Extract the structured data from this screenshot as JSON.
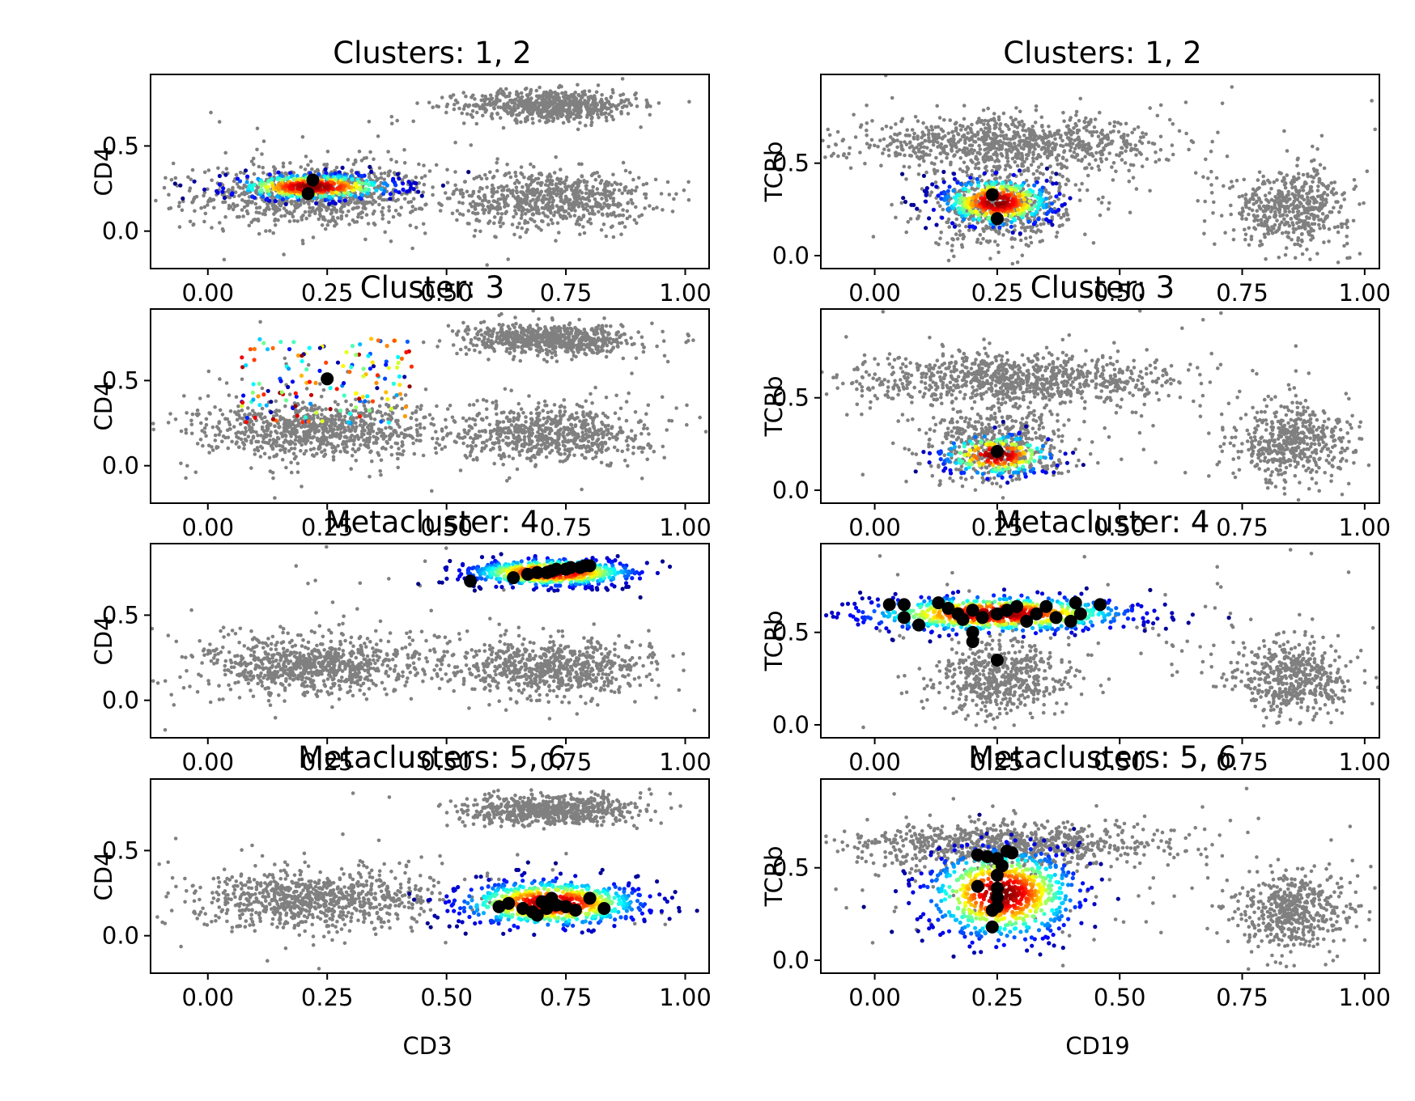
{
  "chart_data": [
    {
      "type": "scatter",
      "title": "Clusters: 1, 2",
      "xlabel": "",
      "ylabel": "CD4",
      "xlim": [
        -0.12,
        1.05
      ],
      "ylim": [
        -0.22,
        0.92
      ],
      "xticks": [
        "0.00",
        "0.25",
        "0.50",
        "0.75",
        "1.00"
      ],
      "yticks": [
        "0.0",
        "0.5"
      ],
      "background_blobs": [
        {
          "cx": 0.22,
          "cy": 0.21,
          "sx": 0.12,
          "sy": 0.09,
          "n": 800
        },
        {
          "cx": 0.72,
          "cy": 0.74,
          "sx": 0.09,
          "sy": 0.045,
          "n": 700
        },
        {
          "cx": 0.72,
          "cy": 0.19,
          "sx": 0.1,
          "sy": 0.085,
          "n": 700
        },
        {
          "cx": 0.3,
          "cy": 0.3,
          "sx": 0.3,
          "sy": 0.25,
          "n": 90
        }
      ],
      "highlight": {
        "cx": 0.22,
        "cy": 0.26,
        "sx": 0.09,
        "sy": 0.04,
        "n": 420,
        "style": "gaussian"
      },
      "centroids": [
        [
          0.22,
          0.3
        ],
        [
          0.21,
          0.22
        ]
      ]
    },
    {
      "type": "scatter",
      "title": "Clusters: 1, 2",
      "xlabel": "",
      "ylabel": "TCRb",
      "xlim": [
        -0.11,
        1.03
      ],
      "ylim": [
        -0.07,
        0.98
      ],
      "xticks": [
        "0.00",
        "0.25",
        "0.50",
        "0.75",
        "1.00"
      ],
      "yticks": [
        "0.0",
        "0.5"
      ],
      "background_blobs": [
        {
          "cx": 0.27,
          "cy": 0.6,
          "sx": 0.16,
          "sy": 0.07,
          "n": 900
        },
        {
          "cx": 0.25,
          "cy": 0.25,
          "sx": 0.07,
          "sy": 0.1,
          "n": 500
        },
        {
          "cx": 0.85,
          "cy": 0.26,
          "sx": 0.06,
          "sy": 0.1,
          "n": 500
        },
        {
          "cx": 0.5,
          "cy": 0.5,
          "sx": 0.3,
          "sy": 0.25,
          "n": 90
        }
      ],
      "highlight": {
        "cx": 0.25,
        "cy": 0.29,
        "sx": 0.06,
        "sy": 0.07,
        "n": 420,
        "style": "gaussian"
      },
      "centroids": [
        [
          0.24,
          0.33
        ],
        [
          0.25,
          0.2
        ]
      ]
    },
    {
      "type": "scatter",
      "title": "Cluster: 3",
      "xlabel": "",
      "ylabel": "CD4",
      "xlim": [
        -0.12,
        1.05
      ],
      "ylim": [
        -0.22,
        0.92
      ],
      "xticks": [
        "0.00",
        "0.25",
        "0.50",
        "0.75",
        "1.00"
      ],
      "yticks": [
        "0.0",
        "0.5"
      ],
      "background_blobs": [
        {
          "cx": 0.22,
          "cy": 0.21,
          "sx": 0.12,
          "sy": 0.08,
          "n": 800
        },
        {
          "cx": 0.72,
          "cy": 0.74,
          "sx": 0.09,
          "sy": 0.045,
          "n": 700
        },
        {
          "cx": 0.72,
          "cy": 0.19,
          "sx": 0.1,
          "sy": 0.085,
          "n": 700
        },
        {
          "cx": 0.3,
          "cy": 0.3,
          "sx": 0.3,
          "sy": 0.25,
          "n": 90
        }
      ],
      "highlight": {
        "cx": 0.25,
        "cy": 0.5,
        "sx": 0.1,
        "sy": 0.15,
        "n": 150,
        "style": "sparse"
      },
      "centroids": [
        [
          0.25,
          0.51
        ]
      ]
    },
    {
      "type": "scatter",
      "title": "Cluster: 3",
      "xlabel": "",
      "ylabel": "TCRb",
      "xlim": [
        -0.11,
        1.03
      ],
      "ylim": [
        -0.07,
        0.98
      ],
      "xticks": [
        "0.00",
        "0.25",
        "0.50",
        "0.75",
        "1.00"
      ],
      "yticks": [
        "0.0",
        "0.5"
      ],
      "background_blobs": [
        {
          "cx": 0.27,
          "cy": 0.6,
          "sx": 0.16,
          "sy": 0.07,
          "n": 900
        },
        {
          "cx": 0.25,
          "cy": 0.25,
          "sx": 0.07,
          "sy": 0.1,
          "n": 500
        },
        {
          "cx": 0.85,
          "cy": 0.26,
          "sx": 0.06,
          "sy": 0.1,
          "n": 500
        },
        {
          "cx": 0.5,
          "cy": 0.5,
          "sx": 0.3,
          "sy": 0.25,
          "n": 90
        }
      ],
      "highlight": {
        "cx": 0.25,
        "cy": 0.19,
        "sx": 0.06,
        "sy": 0.06,
        "n": 220,
        "style": "gaussian"
      },
      "centroids": [
        [
          0.25,
          0.21
        ]
      ]
    },
    {
      "type": "scatter",
      "title": "Metacluster: 4",
      "xlabel": "",
      "ylabel": "CD4",
      "xlim": [
        -0.12,
        1.05
      ],
      "ylim": [
        -0.22,
        0.92
      ],
      "xticks": [
        "0.00",
        "0.25",
        "0.50",
        "0.75",
        "1.00"
      ],
      "yticks": [
        "0.0",
        "0.5"
      ],
      "background_blobs": [
        {
          "cx": 0.22,
          "cy": 0.21,
          "sx": 0.12,
          "sy": 0.08,
          "n": 800
        },
        {
          "cx": 0.72,
          "cy": 0.19,
          "sx": 0.1,
          "sy": 0.085,
          "n": 700
        },
        {
          "cx": 0.3,
          "cy": 0.3,
          "sx": 0.3,
          "sy": 0.25,
          "n": 90
        }
      ],
      "highlight": {
        "cx": 0.72,
        "cy": 0.75,
        "sx": 0.09,
        "sy": 0.04,
        "n": 650,
        "style": "gaussian"
      },
      "centroids": [
        [
          0.55,
          0.7
        ],
        [
          0.64,
          0.72
        ],
        [
          0.67,
          0.74
        ],
        [
          0.69,
          0.75
        ],
        [
          0.71,
          0.75
        ],
        [
          0.72,
          0.76
        ],
        [
          0.73,
          0.77
        ],
        [
          0.75,
          0.77
        ],
        [
          0.76,
          0.78
        ],
        [
          0.78,
          0.78
        ],
        [
          0.79,
          0.79
        ],
        [
          0.8,
          0.79
        ]
      ]
    },
    {
      "type": "scatter",
      "title": "Metacluster: 4",
      "xlabel": "",
      "ylabel": "TCRb",
      "xlim": [
        -0.11,
        1.03
      ],
      "ylim": [
        -0.07,
        0.98
      ],
      "xticks": [
        "0.00",
        "0.25",
        "0.50",
        "0.75",
        "1.00"
      ],
      "yticks": [
        "0.0",
        "0.5"
      ],
      "background_blobs": [
        {
          "cx": 0.25,
          "cy": 0.24,
          "sx": 0.07,
          "sy": 0.1,
          "n": 550
        },
        {
          "cx": 0.85,
          "cy": 0.26,
          "sx": 0.06,
          "sy": 0.1,
          "n": 500
        },
        {
          "cx": 0.5,
          "cy": 0.5,
          "sx": 0.3,
          "sy": 0.25,
          "n": 90
        }
      ],
      "highlight": {
        "cx": 0.25,
        "cy": 0.6,
        "sx": 0.14,
        "sy": 0.05,
        "n": 750,
        "style": "gaussian"
      },
      "centroids": [
        [
          0.03,
          0.65
        ],
        [
          0.06,
          0.65
        ],
        [
          0.06,
          0.58
        ],
        [
          0.09,
          0.54
        ],
        [
          0.13,
          0.66
        ],
        [
          0.15,
          0.63
        ],
        [
          0.17,
          0.6
        ],
        [
          0.18,
          0.57
        ],
        [
          0.2,
          0.62
        ],
        [
          0.22,
          0.58
        ],
        [
          0.25,
          0.6
        ],
        [
          0.27,
          0.62
        ],
        [
          0.29,
          0.64
        ],
        [
          0.31,
          0.56
        ],
        [
          0.33,
          0.6
        ],
        [
          0.35,
          0.64
        ],
        [
          0.37,
          0.58
        ],
        [
          0.4,
          0.56
        ],
        [
          0.41,
          0.66
        ],
        [
          0.42,
          0.6
        ],
        [
          0.46,
          0.65
        ],
        [
          0.2,
          0.45
        ],
        [
          0.25,
          0.35
        ],
        [
          0.2,
          0.5
        ]
      ]
    },
    {
      "type": "scatter",
      "title": "Metaclusters: 5, 6",
      "xlabel": "CD3",
      "ylabel": "CD4",
      "xlim": [
        -0.12,
        1.05
      ],
      "ylim": [
        -0.22,
        0.92
      ],
      "xticks": [
        "0.00",
        "0.25",
        "0.50",
        "0.75",
        "1.00"
      ],
      "yticks": [
        "0.0",
        "0.5"
      ],
      "background_blobs": [
        {
          "cx": 0.22,
          "cy": 0.21,
          "sx": 0.12,
          "sy": 0.08,
          "n": 800
        },
        {
          "cx": 0.72,
          "cy": 0.74,
          "sx": 0.09,
          "sy": 0.045,
          "n": 700
        },
        {
          "cx": 0.3,
          "cy": 0.3,
          "sx": 0.3,
          "sy": 0.25,
          "n": 90
        }
      ],
      "highlight": {
        "cx": 0.72,
        "cy": 0.19,
        "sx": 0.1,
        "sy": 0.07,
        "n": 700,
        "style": "gaussian"
      },
      "centroids": [
        [
          0.61,
          0.17
        ],
        [
          0.63,
          0.19
        ],
        [
          0.66,
          0.16
        ],
        [
          0.68,
          0.14
        ],
        [
          0.7,
          0.2
        ],
        [
          0.71,
          0.16
        ],
        [
          0.72,
          0.22
        ],
        [
          0.73,
          0.18
        ],
        [
          0.75,
          0.17
        ],
        [
          0.77,
          0.15
        ],
        [
          0.8,
          0.22
        ],
        [
          0.83,
          0.16
        ],
        [
          0.69,
          0.12
        ]
      ]
    },
    {
      "type": "scatter",
      "title": "Metaclusters: 5, 6",
      "xlabel": "CD19",
      "ylabel": "TCRb",
      "xlim": [
        -0.11,
        1.03
      ],
      "ylim": [
        -0.07,
        0.98
      ],
      "xticks": [
        "0.00",
        "0.25",
        "0.50",
        "0.75",
        "1.00"
      ],
      "yticks": [
        "0.0",
        "0.5"
      ],
      "background_blobs": [
        {
          "cx": 0.27,
          "cy": 0.62,
          "sx": 0.16,
          "sy": 0.06,
          "n": 800
        },
        {
          "cx": 0.85,
          "cy": 0.26,
          "sx": 0.06,
          "sy": 0.1,
          "n": 500
        },
        {
          "cx": 0.5,
          "cy": 0.5,
          "sx": 0.3,
          "sy": 0.25,
          "n": 90
        }
      ],
      "highlight": {
        "cx": 0.26,
        "cy": 0.36,
        "sx": 0.08,
        "sy": 0.13,
        "n": 750,
        "style": "gaussian"
      },
      "centroids": [
        [
          0.21,
          0.57
        ],
        [
          0.23,
          0.56
        ],
        [
          0.25,
          0.55
        ],
        [
          0.27,
          0.59
        ],
        [
          0.28,
          0.58
        ],
        [
          0.26,
          0.51
        ],
        [
          0.25,
          0.46
        ],
        [
          0.25,
          0.39
        ],
        [
          0.21,
          0.4
        ],
        [
          0.25,
          0.34
        ],
        [
          0.25,
          0.29
        ],
        [
          0.24,
          0.27
        ],
        [
          0.24,
          0.18
        ]
      ]
    }
  ]
}
